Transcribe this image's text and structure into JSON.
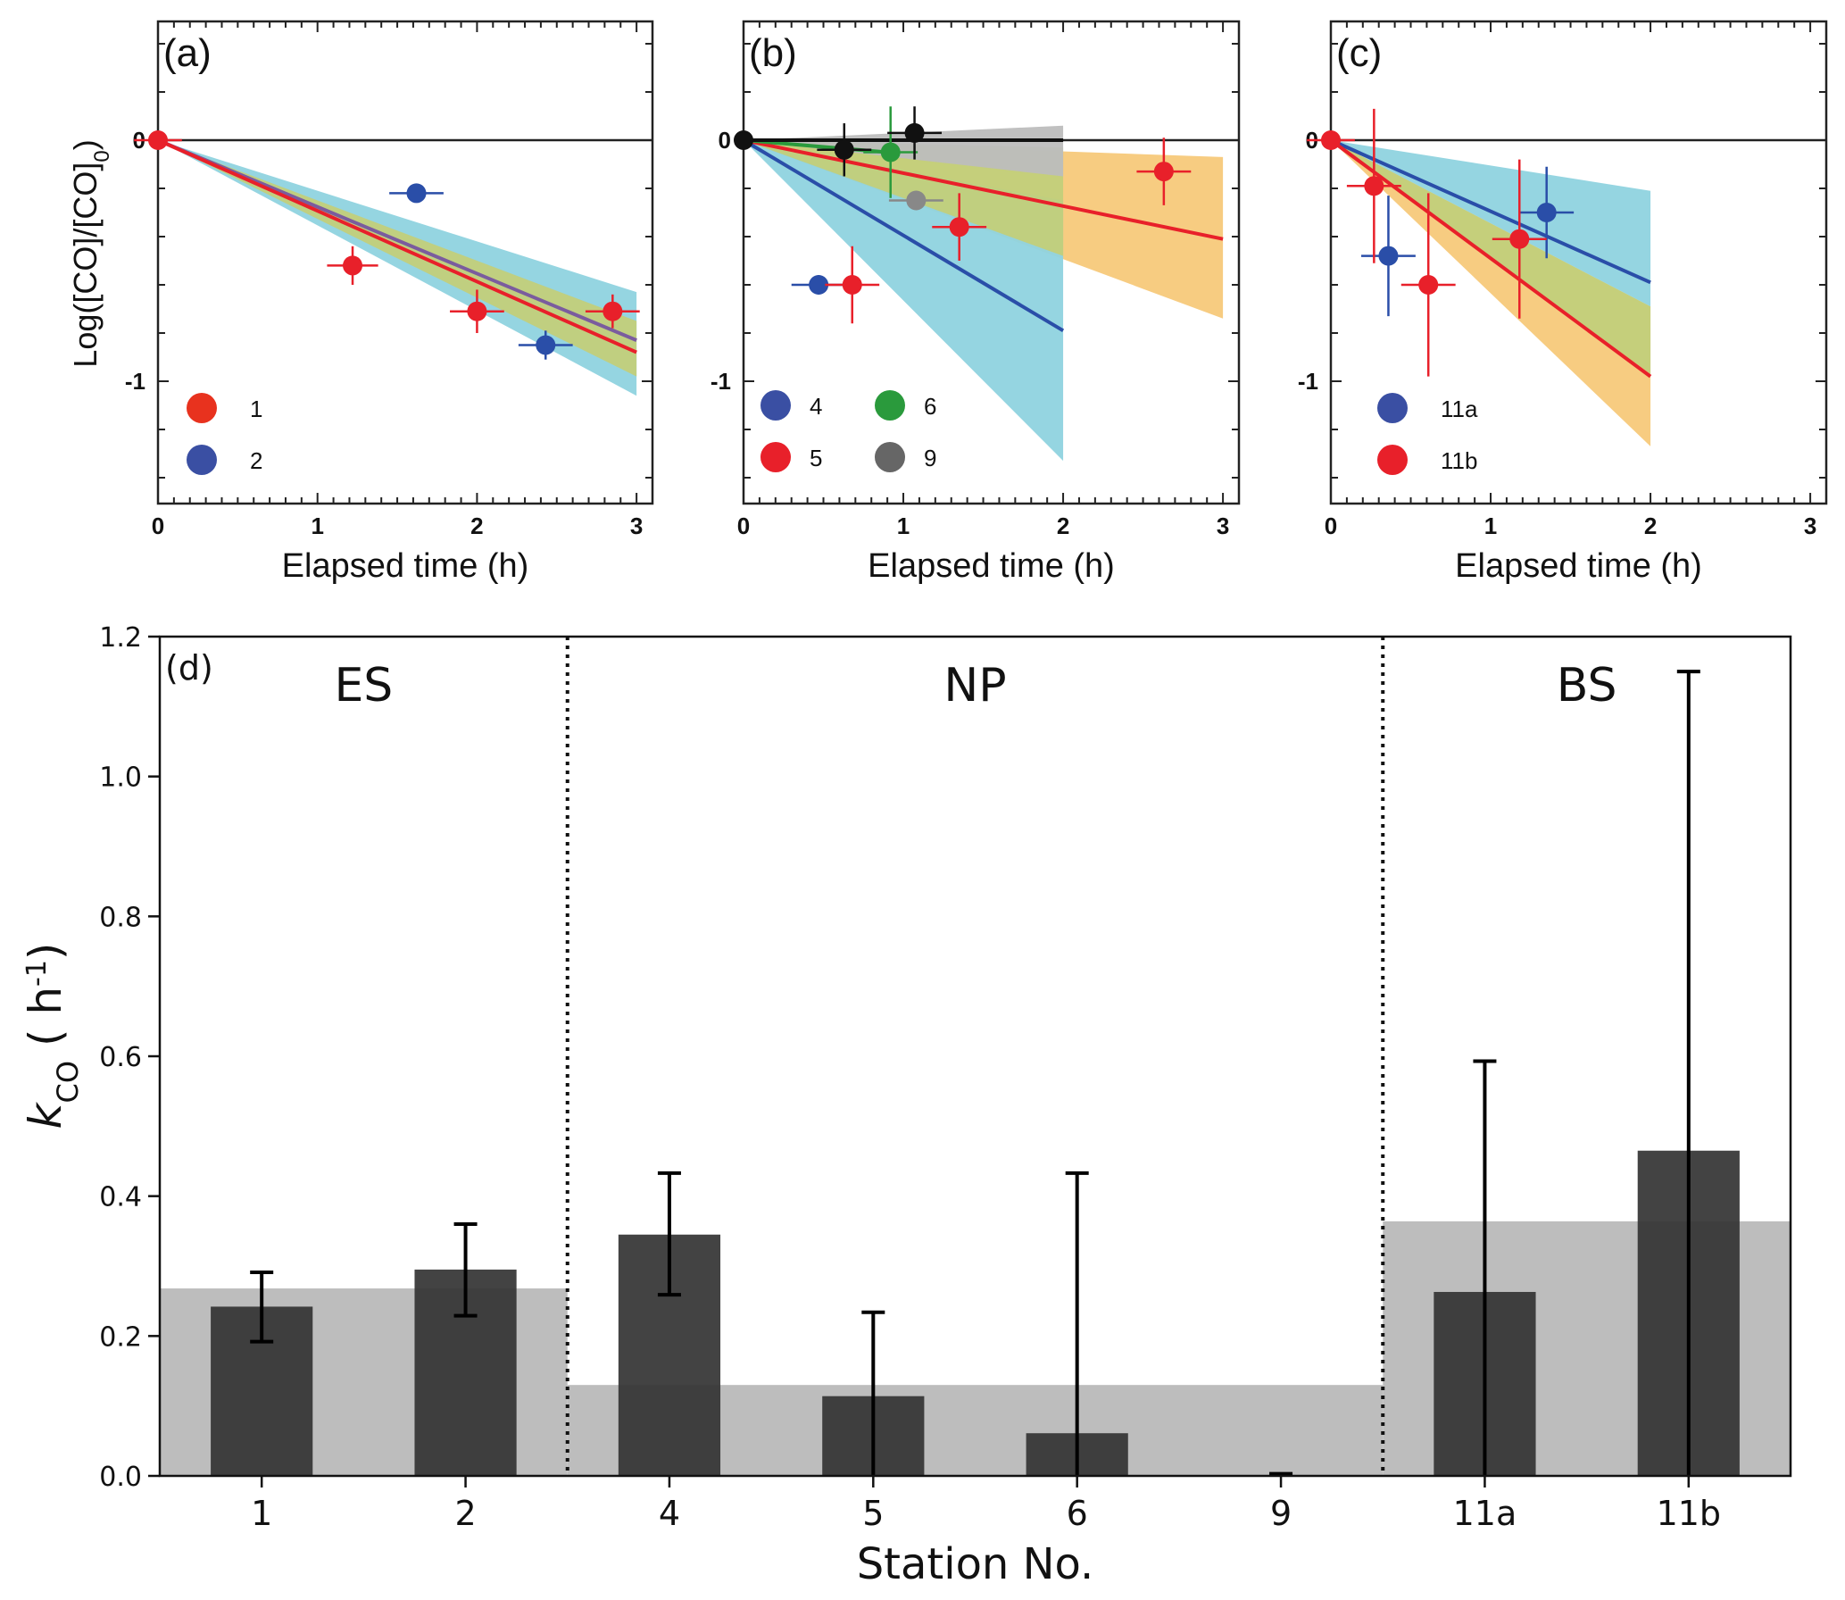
{
  "chart_data": [
    {
      "panel": "(a)",
      "type": "scatter",
      "xlabel": "Elapsed time (h)",
      "ylabel": "Log([CO]/[CO]0)",
      "xlim": [
        0,
        3.1
      ],
      "ylim": [
        -1.5,
        0.49
      ],
      "xticks": [
        "0",
        "1",
        "2",
        "3"
      ],
      "yticks": [
        {
          "v": 0,
          "label": "0"
        },
        {
          "v": -1,
          "label": "-1"
        }
      ],
      "legend": [
        {
          "name": "1",
          "color": "#e8321e"
        },
        {
          "name": "2",
          "color": "#3a4fa3"
        }
      ],
      "bands": [
        {
          "color": "#8fd3df",
          "x_end": 3,
          "upper": -0.63,
          "lower": -1.06
        },
        {
          "color": "#c2cf7a",
          "x_end": 3,
          "upper": -0.75,
          "lower": -0.98
        }
      ],
      "lines": [
        {
          "name": "fit-2",
          "color": "#7a5c9e",
          "x_end": 3,
          "y_end": -0.83
        },
        {
          "name": "fit-1",
          "color": "#e8202a",
          "x_end": 3,
          "y_end": -0.88
        }
      ],
      "series": [
        {
          "name": "1",
          "color": "#e8202a",
          "points": [
            {
              "x": 0,
              "y": 0,
              "xe": 0.15,
              "ye": 0
            },
            {
              "x": 1.22,
              "y": -0.52,
              "xe": 0.16,
              "ye": 0.08
            },
            {
              "x": 2.0,
              "y": -0.71,
              "xe": 0.17,
              "ye": 0.09
            },
            {
              "x": 2.85,
              "y": -0.71,
              "xe": 0.17,
              "ye": 0.07
            }
          ]
        },
        {
          "name": "2",
          "color": "#2a4ea8",
          "points": [
            {
              "x": 1.62,
              "y": -0.22,
              "xe": 0.17,
              "ye": 0.03
            },
            {
              "x": 2.43,
              "y": -0.85,
              "xe": 0.17,
              "ye": 0.06
            }
          ]
        }
      ]
    },
    {
      "panel": "(b)",
      "type": "scatter",
      "xlabel": "Elapsed time (h)",
      "ylabel": "",
      "xlim": [
        0,
        3.1
      ],
      "ylim": [
        -1.5,
        0.49
      ],
      "xticks": [
        "0",
        "1",
        "2",
        "3"
      ],
      "yticks": [
        {
          "v": 0,
          "label": "0"
        },
        {
          "v": -1,
          "label": "-1"
        }
      ],
      "legend": [
        {
          "name": "4",
          "color": "#3a4fa3"
        },
        {
          "name": "6",
          "color": "#2a9a3c"
        },
        {
          "name": "5",
          "color": "#e8202a"
        },
        {
          "name": "9",
          "color": "#666666"
        }
      ],
      "bands": [
        {
          "color": "#f7c97a",
          "x_end": 3,
          "upper": -0.07,
          "lower": -0.74
        },
        {
          "color": "#8fd3df",
          "x_end": 2,
          "upper": -0.25,
          "lower": -1.33
        },
        {
          "color": "#c2cf7a",
          "x_end": 2,
          "upper": -0.03,
          "lower": -0.48,
          "clip_between": true
        },
        {
          "color": "#bdbdbd",
          "x_end": 2,
          "upper": 0.06,
          "lower": -0.15
        }
      ],
      "lines": [
        {
          "name": "fit-4",
          "color": "#2a4ea8",
          "x_end": 2,
          "y_end": -0.79
        },
        {
          "name": "fit-5",
          "color": "#e8202a",
          "x_end": 3,
          "y_end": -0.41
        },
        {
          "name": "fit-6",
          "color": "#2a9a3c",
          "x_end": 0.9,
          "y_end": -0.05
        },
        {
          "name": "fit-9",
          "color": "#111111",
          "x_end": 2,
          "y_end": 0.0
        }
      ],
      "series": [
        {
          "name": "4",
          "color": "#2a4ea8",
          "points": [
            {
              "x": 0.47,
              "y": -0.6,
              "xe": 0.17,
              "ye": 0.04
            }
          ]
        },
        {
          "name": "5",
          "color": "#e8202a",
          "points": [
            {
              "x": 0.68,
              "y": -0.6,
              "xe": 0.17,
              "ye": 0.16
            },
            {
              "x": 1.35,
              "y": -0.36,
              "xe": 0.17,
              "ye": 0.14
            },
            {
              "x": 2.63,
              "y": -0.13,
              "xe": 0.17,
              "ye": 0.14
            }
          ]
        },
        {
          "name": "6",
          "color": "#2a9a3c",
          "points": [
            {
              "x": 0.92,
              "y": -0.05,
              "xe": 0.17,
              "ye": 0.19
            }
          ]
        },
        {
          "name": "9",
          "color": "#888888",
          "points": [
            {
              "x": 1.08,
              "y": -0.25,
              "xe": 0.17,
              "ye": 0.02
            }
          ]
        },
        {
          "name": "black",
          "color": "#111111",
          "points": [
            {
              "x": 0,
              "y": 0,
              "xe": 0,
              "ye": 0
            },
            {
              "x": 0.63,
              "y": -0.04,
              "xe": 0.17,
              "ye": 0.11
            },
            {
              "x": 1.07,
              "y": 0.03,
              "xe": 0.17,
              "ye": 0.11
            }
          ]
        }
      ]
    },
    {
      "panel": "(c)",
      "type": "scatter",
      "xlabel": "Elapsed time (h)",
      "ylabel": "",
      "xlim": [
        0,
        3.1
      ],
      "ylim": [
        -1.5,
        0.49
      ],
      "xticks": [
        "0",
        "1",
        "2",
        "3"
      ],
      "yticks": [
        {
          "v": 0,
          "label": "0"
        },
        {
          "v": -1,
          "label": "-1"
        }
      ],
      "legend": [
        {
          "name": "11a",
          "color": "#3a4fa3"
        },
        {
          "name": "11b",
          "color": "#e8202a"
        }
      ],
      "bands": [
        {
          "color": "#f7c97a",
          "x_end": 2,
          "upper": -0.69,
          "lower": -1.27
        },
        {
          "color": "#8fd3df",
          "x_end": 2,
          "upper": -0.21,
          "lower": -0.69
        },
        {
          "color": "#c2cf7a",
          "x_end": 2,
          "upper": -0.69,
          "lower": -0.97
        }
      ],
      "lines": [
        {
          "name": "fit-11a",
          "color": "#2a4ea8",
          "x_end": 2,
          "y_end": -0.59
        },
        {
          "name": "fit-11b",
          "color": "#e8202a",
          "x_end": 2,
          "y_end": -0.98
        }
      ],
      "series": [
        {
          "name": "11a",
          "color": "#2a4ea8",
          "points": [
            {
              "x": 0.36,
              "y": -0.48,
              "xe": 0.17,
              "ye": 0.25
            },
            {
              "x": 1.35,
              "y": -0.3,
              "xe": 0.17,
              "ye": 0.19
            }
          ]
        },
        {
          "name": "11b",
          "color": "#e8202a",
          "points": [
            {
              "x": 0,
              "y": 0,
              "xe": 0.15,
              "ye": 0
            },
            {
              "x": 0.27,
              "y": -0.19,
              "xe": 0.17,
              "ye": 0.32
            },
            {
              "x": 0.61,
              "y": -0.6,
              "xe": 0.17,
              "ye": 0.38
            },
            {
              "x": 1.18,
              "y": -0.41,
              "xe": 0.17,
              "ye": 0.33
            }
          ]
        }
      ]
    },
    {
      "panel": "(d)",
      "type": "bar",
      "xlabel": "Station No.",
      "ylabel_main": "k",
      "ylabel_sub": "CO",
      "ylabel_unit": "( h",
      "ylabel_sup": "-1",
      "ylabel_close": ")",
      "ylim": [
        0,
        1.2
      ],
      "yticks": [
        "0.0",
        "0.2",
        "0.4",
        "0.6",
        "0.8",
        "1.0",
        "1.2"
      ],
      "categories": [
        "1",
        "2",
        "4",
        "5",
        "6",
        "9",
        "11a",
        "11b"
      ],
      "values": [
        0.242,
        0.295,
        0.345,
        0.114,
        0.061,
        0.0,
        0.263,
        0.465
      ],
      "err_upper": [
        0.291,
        0.36,
        0.433,
        0.234,
        0.433,
        0.003,
        0.593,
        1.15
      ],
      "err_lower": [
        0.192,
        0.229,
        0.259,
        0.0,
        0.0,
        0.0,
        0.0,
        0.0
      ],
      "regions": [
        {
          "name": "ES",
          "from": 0,
          "to": 1,
          "mean": 0.268
        },
        {
          "name": "NP",
          "from": 2,
          "to": 5,
          "mean": 0.13
        },
        {
          "name": "BS",
          "from": 6,
          "to": 7,
          "mean": 0.364
        }
      ],
      "bar_color": "#333333",
      "band_color": "#bdbdbd"
    }
  ],
  "labels": {
    "panel_a": "(a)",
    "panel_b": "(b)",
    "panel_c": "(c)",
    "panel_d": "(d)"
  }
}
